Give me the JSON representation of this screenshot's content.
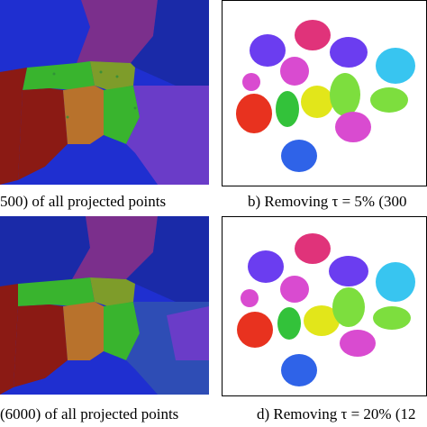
{
  "figure": {
    "captions": {
      "a": "500) of all projected points",
      "b": "b) Removing τ = 5% (300",
      "c": "(6000) of all projected points",
      "d": "d) Removing τ = 20% (12"
    },
    "region_colors": {
      "blue": "#1f2fd0",
      "darkred": "#8b1a14",
      "brown": "#b8722c",
      "olive": "#7e9c2a",
      "green": "#39b42e",
      "purple": "#6a3cc8",
      "navy": "#1a2aa8",
      "steel": "#2e4db5",
      "forest": "#2f8d3a"
    },
    "cluster_colors": {
      "magenta": "#e0337a",
      "violet": "#6b3df0",
      "skyblue": "#38c5f0",
      "orchid": "#d94bd0",
      "green": "#33c23a",
      "red": "#e8321f",
      "yellow": "#e2e61a",
      "lime": "#7dde3e",
      "cyan": "#4ad0e6",
      "blue": "#2f63e8"
    }
  }
}
